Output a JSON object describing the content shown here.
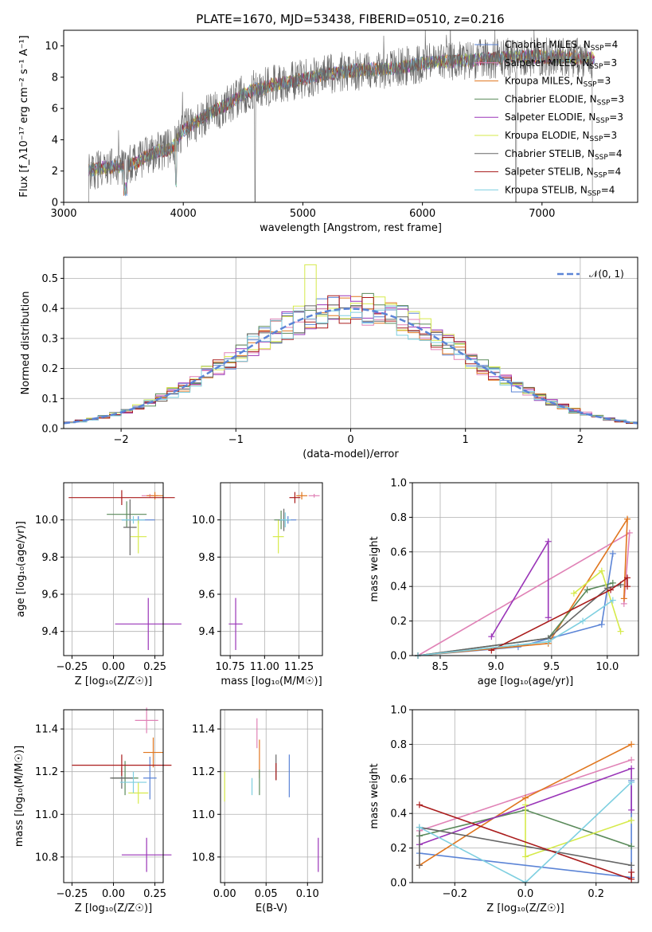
{
  "figure": {
    "title": "PLATE=1670, MJD=53438, FIBERID=0510, z=0.216"
  },
  "models": [
    {
      "name": "Chabrier MILES, N$_{SSP}$=4",
      "label": "Chabrier MILES, N",
      "sub": "SSP",
      "suffix": "=4",
      "color": "#5b84d6"
    },
    {
      "name": "Salpeter MILES, N$_{SSP}$=3",
      "label": "Salpeter MILES, N",
      "sub": "SSP",
      "suffix": "=3",
      "color": "#e082b6"
    },
    {
      "name": "Kroupa MILES, N$_{SSP}$=3",
      "label": "Kroupa MILES, N",
      "sub": "SSP",
      "suffix": "=3",
      "color": "#e0761e"
    },
    {
      "name": "Chabrier ELODIE, N$_{SSP}$=3",
      "label": "Chabrier ELODIE, N",
      "sub": "SSP",
      "suffix": "=3",
      "color": "#5a8a5a"
    },
    {
      "name": "Salpeter ELODIE, N$_{SSP}$=3",
      "label": "Salpeter ELODIE, N",
      "sub": "SSP",
      "suffix": "=3",
      "color": "#9a35b8"
    },
    {
      "name": "Kroupa ELODIE, N$_{SSP}$=3",
      "label": "Kroupa ELODIE, N",
      "sub": "SSP",
      "suffix": "=3",
      "color": "#d6ea4a"
    },
    {
      "name": "Chabrier STELIB, N$_{SSP}$=4",
      "label": "Chabrier STELIB, N",
      "sub": "SSP",
      "suffix": "=4",
      "color": "#666666"
    },
    {
      "name": "Salpeter STELIB, N$_{SSP}$=4",
      "label": "Salpeter STELIB, N",
      "sub": "SSP",
      "suffix": "=4",
      "color": "#aa1c1c"
    },
    {
      "name": "Kroupa STELIB, N$_{SSP}$=4",
      "label": "Kroupa STELIB, N",
      "sub": "SSP",
      "suffix": "=4",
      "color": "#7ecfe0"
    }
  ],
  "chart_data": [
    {
      "id": "spectrum",
      "type": "line",
      "xlabel": "wavelength [Angstrom, rest frame]",
      "ylabel": "Flux [f_λ10⁻¹⁷ erg cm⁻² s⁻¹ A⁻¹]",
      "xlim": [
        3000,
        7800
      ],
      "ylim": [
        0,
        11
      ],
      "xticks": [
        "3000",
        "4000",
        "5000",
        "6000",
        "7000"
      ],
      "yticks": [
        "0",
        "2",
        "4",
        "6",
        "8",
        "10"
      ],
      "legend": "upper right",
      "grid": false,
      "continuum": {
        "x": [
          3210,
          3300,
          3500,
          3600,
          3700,
          3800,
          3900,
          4000,
          4100,
          4200,
          4300,
          4400,
          4500,
          4600,
          4700,
          4800,
          4900,
          5000,
          5200,
          5400,
          5600,
          5800,
          6000,
          6200,
          6400,
          6600,
          6800,
          7000,
          7200,
          7400
        ],
        "y": [
          2.0,
          2.2,
          2.3,
          2.5,
          3.0,
          3.3,
          3.4,
          4.6,
          5.1,
          5.6,
          6.0,
          6.4,
          6.9,
          7.2,
          7.4,
          7.6,
          7.7,
          7.9,
          8.2,
          8.4,
          8.5,
          8.6,
          8.9,
          9.0,
          9.1,
          9.2,
          9.3,
          9.3,
          9.3,
          9.2
        ]
      },
      "data_series": "Chabrier STELIB, N$_{SSP}$=4"
    },
    {
      "id": "residual-histogram",
      "type": "bar",
      "xlabel": "(data-model)/error",
      "ylabel": "Normed distribution",
      "xlim": [
        -2.5,
        2.5
      ],
      "ylim": [
        0,
        0.57
      ],
      "xticks": [
        "−2",
        "−1",
        "0",
        "1",
        "2"
      ],
      "yticks": [
        "0.0",
        "0.1",
        "0.2",
        "0.3",
        "0.4",
        "0.5"
      ],
      "grid": true,
      "legend": "upper right",
      "reference_curve": {
        "name": "𝒩(0, 1)",
        "mean": 0,
        "sigma": 1
      },
      "bin_width": 0.1,
      "bin_start": -2.5
    },
    {
      "id": "age-vs-z",
      "type": "scatter",
      "xlabel": "Z [log₁₀(Z/Z☉)]",
      "ylabel": "age  [log₁₀(age/yr)]",
      "xlim": [
        -0.3,
        0.3
      ],
      "ylim": [
        9.27,
        10.2
      ],
      "xticks": [
        "−0.25",
        "0.00",
        "0.25"
      ],
      "yticks": [
        "9.4",
        "9.6",
        "9.8",
        "10.0"
      ],
      "grid": true,
      "points": [
        {
          "x": 0.15,
          "y": 10.0,
          "xerr": 0.1,
          "yerr": 0.02
        },
        {
          "x": 0.22,
          "y": 10.13,
          "xerr": 0.05,
          "yerr": 0.01
        },
        {
          "x": 0.25,
          "y": 10.13,
          "xerr": 0.05,
          "yerr": 0.02
        },
        {
          "x": 0.08,
          "y": 10.03,
          "xerr": 0.12,
          "yerr": 0.07
        },
        {
          "x": 0.21,
          "y": 9.44,
          "xerr": 0.2,
          "yerr": 0.14
        },
        {
          "x": 0.15,
          "y": 9.91,
          "xerr": 0.05,
          "yerr": 0.09
        },
        {
          "x": 0.1,
          "y": 9.96,
          "xerr": 0.04,
          "yerr": 0.15
        },
        {
          "x": 0.05,
          "y": 10.12,
          "xerr": 0.32,
          "yerr": 0.04
        },
        {
          "x": 0.12,
          "y": 10.0,
          "xerr": 0.07,
          "yerr": 0.02
        }
      ]
    },
    {
      "id": "age-vs-mass",
      "type": "scatter",
      "xlabel": "mass [log₁₀(M/M☉)]",
      "ylabel": "",
      "xlim": [
        10.68,
        11.42
      ],
      "ylim": [
        9.27,
        10.2
      ],
      "xticks": [
        "10.75",
        "11.00",
        "11.25"
      ],
      "yticks": [
        "9.4",
        "9.6",
        "9.8",
        "10.0"
      ],
      "grid": true,
      "points": [
        {
          "x": 11.17,
          "y": 10.0,
          "xerr": 0.06,
          "yerr": 0.02
        },
        {
          "x": 11.36,
          "y": 10.13,
          "xerr": 0.04,
          "yerr": 0.01
        },
        {
          "x": 11.27,
          "y": 10.13,
          "xerr": 0.04,
          "yerr": 0.02
        },
        {
          "x": 11.12,
          "y": 10.0,
          "xerr": 0.05,
          "yerr": 0.05
        },
        {
          "x": 10.79,
          "y": 9.44,
          "xerr": 0.05,
          "yerr": 0.14
        },
        {
          "x": 11.1,
          "y": 9.91,
          "xerr": 0.04,
          "yerr": 0.09
        },
        {
          "x": 11.14,
          "y": 10.0,
          "xerr": 0.04,
          "yerr": 0.06
        },
        {
          "x": 11.22,
          "y": 10.12,
          "xerr": 0.04,
          "yerr": 0.03
        },
        {
          "x": 11.15,
          "y": 10.0,
          "xerr": 0.04,
          "yerr": 0.04
        }
      ]
    },
    {
      "id": "mass-weight-vs-age",
      "type": "line",
      "xlabel": "age  [log₁₀(age/yr)]",
      "ylabel": "mass weight",
      "xlim": [
        8.25,
        10.28
      ],
      "ylim": [
        0,
        1
      ],
      "xticks": [
        "8.5",
        "9.0",
        "9.5",
        "10.0"
      ],
      "yticks": [
        "0.0",
        "0.2",
        "0.4",
        "0.6",
        "0.8",
        "1.0"
      ],
      "grid": true,
      "series": [
        {
          "x": [
            8.3,
            9.2,
            9.95,
            10.05
          ],
          "y": [
            0.0,
            0.05,
            0.18,
            0.59
          ]
        },
        {
          "x": [
            8.3,
            10.2,
            10.15
          ],
          "y": [
            0.0,
            0.71,
            0.3
          ]
        },
        {
          "x": [
            8.3,
            9.47,
            10.18,
            10.15
          ],
          "y": [
            0.0,
            0.07,
            0.79,
            0.33
          ]
        },
        {
          "x": [
            8.3,
            9.47,
            9.82,
            10.05
          ],
          "y": [
            0.0,
            0.1,
            0.38,
            0.42
          ]
        },
        {
          "x": [
            8.96,
            9.47,
            9.47
          ],
          "y": [
            0.11,
            0.66,
            0.22
          ]
        },
        {
          "x": [
            9.7,
            9.95,
            10.12
          ],
          "y": [
            0.36,
            0.49,
            0.14
          ]
        },
        {
          "x": [
            8.3,
            9.47,
            10.0,
            10.12
          ],
          "y": [
            0.0,
            0.1,
            0.39,
            0.41
          ]
        },
        {
          "x": [
            8.96,
            10.03,
            10.18,
            10.18
          ],
          "y": [
            0.03,
            0.38,
            0.45,
            0.4
          ]
        },
        {
          "x": [
            8.3,
            9.47,
            9.78,
            10.05
          ],
          "y": [
            0.0,
            0.08,
            0.2,
            0.32
          ]
        }
      ]
    },
    {
      "id": "mass-vs-z",
      "type": "scatter",
      "xlabel": "Z [log₁₀(Z/Z☉)]",
      "ylabel": "mass [log₁₀(M/M☉)]",
      "xlim": [
        -0.3,
        0.3
      ],
      "ylim": [
        10.68,
        11.49
      ],
      "xticks": [
        "−0.25",
        "0.00",
        "0.25"
      ],
      "yticks": [
        "10.8",
        "11.0",
        "11.2",
        "11.4"
      ],
      "grid": true,
      "points": [
        {
          "x": 0.22,
          "y": 11.17,
          "xerr": 0.04,
          "yerr": 0.1
        },
        {
          "x": 0.2,
          "y": 11.44,
          "xerr": 0.07,
          "yerr": 0.06
        },
        {
          "x": 0.24,
          "y": 11.29,
          "xerr": 0.06,
          "yerr": 0.07
        },
        {
          "x": 0.07,
          "y": 11.17,
          "xerr": 0.08,
          "yerr": 0.08
        },
        {
          "x": 0.2,
          "y": 10.81,
          "xerr": 0.15,
          "yerr": 0.08
        },
        {
          "x": 0.15,
          "y": 11.1,
          "xerr": 0.06,
          "yerr": 0.05
        },
        {
          "x": 0.05,
          "y": 11.17,
          "xerr": 0.07,
          "yerr": 0.05
        },
        {
          "x": 0.05,
          "y": 11.23,
          "xerr": 0.3,
          "yerr": 0.05
        },
        {
          "x": 0.12,
          "y": 11.15,
          "xerr": 0.08,
          "yerr": 0.05
        }
      ]
    },
    {
      "id": "mass-vs-ebv",
      "type": "scatter",
      "xlabel": "E(B-V)",
      "ylabel": "",
      "xlim": [
        -0.005,
        0.118
      ],
      "ylim": [
        10.68,
        11.49
      ],
      "xticks": [
        "0.00",
        "0.05",
        "0.10"
      ],
      "yticks": [
        "10.8",
        "11.0",
        "11.2",
        "11.4"
      ],
      "grid": true,
      "points": [
        {
          "x": 0.078,
          "y": 11.18,
          "yerr": 0.1
        },
        {
          "x": 0.039,
          "y": 11.38,
          "yerr": 0.07
        },
        {
          "x": 0.042,
          "y": 11.26,
          "yerr": 0.09
        },
        {
          "x": 0.042,
          "y": 11.15,
          "yerr": 0.06
        },
        {
          "x": 0.113,
          "y": 10.81,
          "yerr": 0.08
        },
        {
          "x": 0.0,
          "y": 11.13,
          "yerr": 0.07
        },
        {
          "x": 0.062,
          "y": 11.22,
          "yerr": 0.06
        },
        {
          "x": 0.062,
          "y": 11.2,
          "yerr": 0.04
        },
        {
          "x": 0.033,
          "y": 11.13,
          "yerr": 0.04
        }
      ]
    },
    {
      "id": "mass-weight-vs-z",
      "type": "line",
      "xlabel": "Z [log₁₀(Z/Z☉)]",
      "ylabel": "mass weight",
      "xlim": [
        -0.32,
        0.32
      ],
      "ylim": [
        0,
        1
      ],
      "xticks": [
        "−0.2",
        "0.0",
        "0.2"
      ],
      "yticks": [
        "0.0",
        "0.2",
        "0.4",
        "0.6",
        "0.8",
        "1.0"
      ],
      "grid": true,
      "series": [
        {
          "x": [
            -0.3,
            0.3,
            0.3
          ],
          "y": [
            0.17,
            0.03,
            0.59
          ]
        },
        {
          "x": [
            -0.3,
            0.3
          ],
          "y": [
            0.3,
            0.71
          ]
        },
        {
          "x": [
            -0.3,
            0.0,
            0.3
          ],
          "y": [
            0.1,
            0.49,
            0.8
          ]
        },
        {
          "x": [
            -0.3,
            0.0,
            0.3
          ],
          "y": [
            0.27,
            0.42,
            0.21
          ]
        },
        {
          "x": [
            -0.3,
            0.3,
            0.3
          ],
          "y": [
            0.22,
            0.66,
            0.42
          ]
        },
        {
          "x": [
            0.0,
            0.0,
            0.3
          ],
          "y": [
            0.45,
            0.15,
            0.36
          ]
        },
        {
          "x": [
            -0.3,
            -0.3,
            0.3
          ],
          "y": [
            0.1,
            0.32,
            0.1
          ]
        },
        {
          "x": [
            -0.3,
            0.3,
            0.3
          ],
          "y": [
            0.45,
            0.02,
            0.06
          ]
        },
        {
          "x": [
            -0.3,
            0.0,
            0.3
          ],
          "y": [
            0.32,
            0.0,
            0.58
          ]
        }
      ]
    }
  ]
}
